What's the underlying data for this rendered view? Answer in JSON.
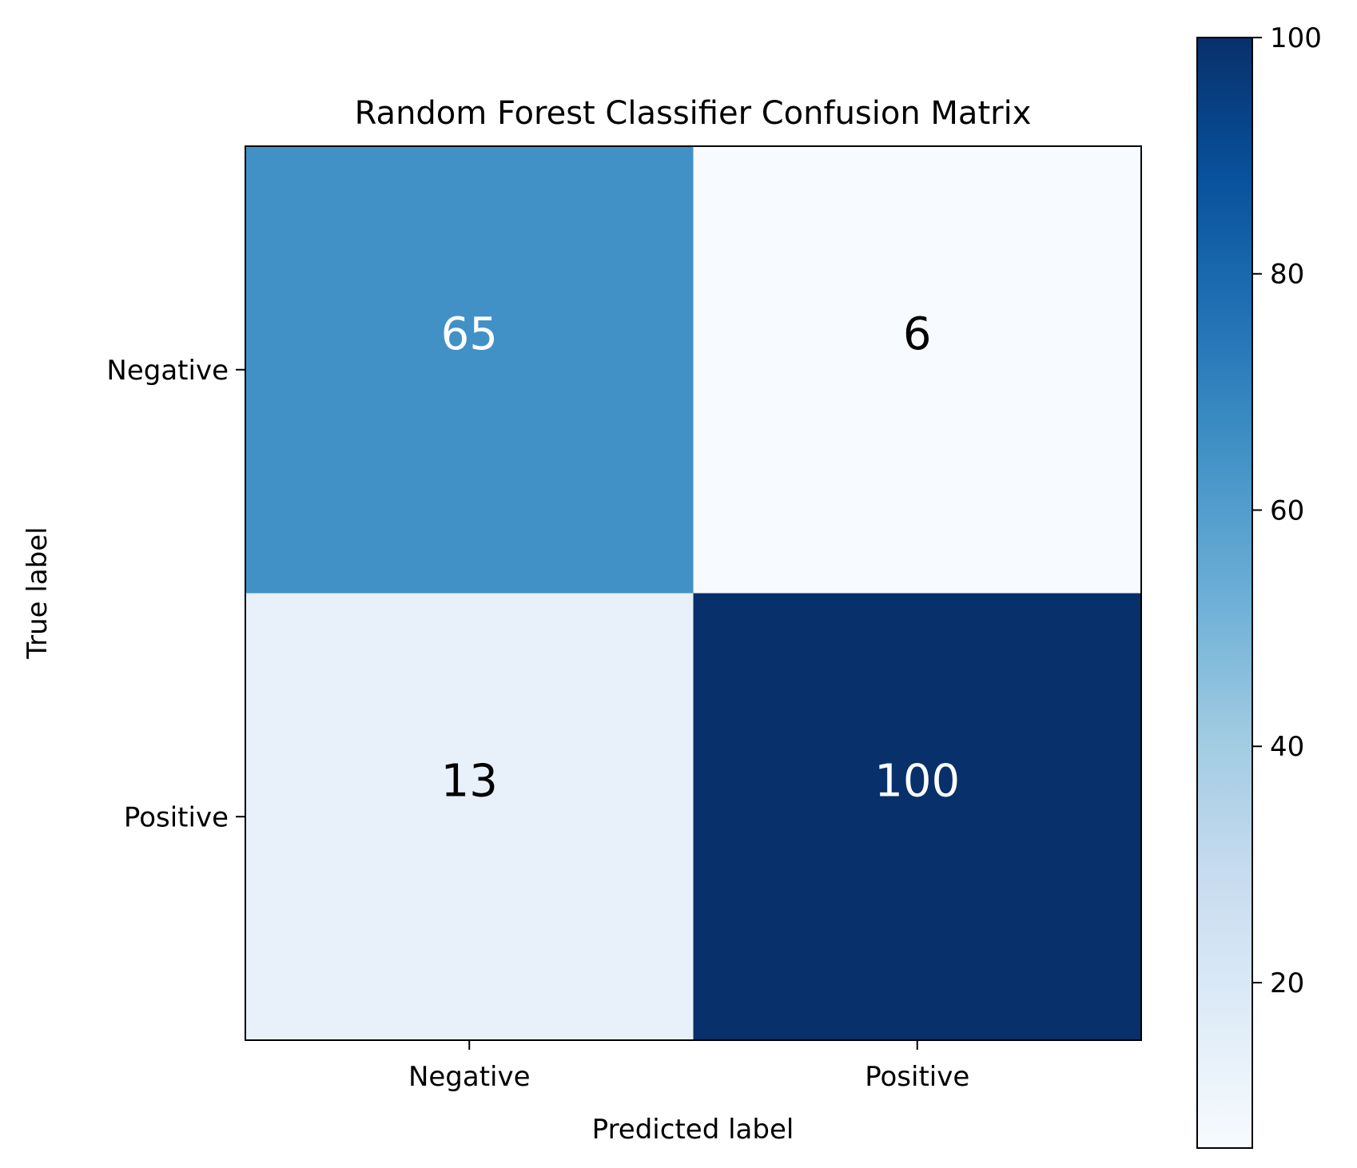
{
  "chart_data": {
    "type": "heatmap",
    "title": "Random Forest Classifier Confusion Matrix",
    "xlabel": "Predicted label",
    "ylabel": "True label",
    "x_categories": [
      "Negative",
      "Positive"
    ],
    "y_categories": [
      "Negative",
      "Positive"
    ],
    "values": [
      [
        65,
        6
      ],
      [
        13,
        100
      ]
    ],
    "colormap": "Blues",
    "colorbar": {
      "range": [
        6,
        100
      ],
      "ticks": [
        20,
        40,
        60,
        80,
        100
      ],
      "tick_labels": [
        "20",
        "40",
        "60",
        "80",
        "100"
      ]
    },
    "text_color_light": "#ffffff",
    "text_color_dark": "#000000",
    "grid": false
  }
}
